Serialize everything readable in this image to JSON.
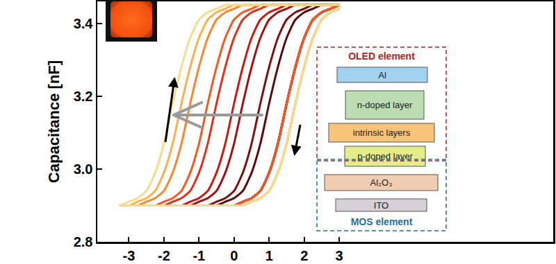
{
  "chart_data": {
    "type": "line",
    "ylabel": "Capacitance [nF]",
    "xlim": [
      -3.9,
      9.1
    ],
    "ylim": [
      2.8,
      3.46
    ],
    "xticks": [
      -3,
      -2,
      -1,
      0,
      1,
      2,
      3
    ],
    "yticks": [
      2.8,
      {
        "value": 3,
        "label": "3.0"
      },
      3.2,
      3.4
    ],
    "grid": false,
    "x": [
      -3.25,
      -3,
      -2.75,
      -2.5,
      -2.25,
      -2,
      -1.75,
      -1.5,
      -1.25,
      -1,
      -0.75,
      -0.5,
      -0.25,
      0,
      0.25,
      0.5,
      0.75,
      1,
      1.25,
      1.5,
      1.75,
      2,
      2.25,
      2.5,
      2.75,
      3,
      3,
      2.75,
      2.5,
      2.25,
      2,
      1.75,
      1.5,
      1.25,
      1,
      0.75,
      0.5,
      0.25,
      0,
      -0.25,
      -0.5,
      -0.75,
      -1,
      -1.25,
      -1.5,
      -1.75,
      -2,
      -2.25,
      -2.5,
      -2.75,
      -3,
      -3.25
    ],
    "series": [
      {
        "color": "#5a0a0a",
        "line_style": "solid",
        "values": [
          2.9,
          2.9,
          2.9,
          2.9,
          2.9,
          2.9,
          2.9,
          2.9,
          2.9,
          2.9,
          2.9,
          2.9,
          2.9,
          2.9,
          2.91,
          2.92,
          2.94,
          2.99,
          3.07,
          3.18,
          3.28,
          3.36,
          3.41,
          3.43,
          3.44,
          3.45,
          3.45,
          3.45,
          3.45,
          3.44,
          3.43,
          3.41,
          3.36,
          3.28,
          3.18,
          3.07,
          2.99,
          2.94,
          2.92,
          2.91,
          2.9,
          2.9,
          2.9,
          2.9,
          2.9,
          2.9,
          2.9,
          2.9,
          2.9,
          2.9,
          2.9,
          2.9
        ]
      },
      {
        "color": "#7d0f0f",
        "line_style": "solid",
        "values": [
          2.9,
          2.9,
          2.9,
          2.9,
          2.9,
          2.9,
          2.9,
          2.9,
          2.9,
          2.9,
          2.9,
          2.9,
          2.9,
          2.9,
          2.91,
          2.92,
          2.94,
          2.99,
          3.07,
          3.18,
          3.28,
          3.36,
          3.41,
          3.43,
          3.44,
          3.45,
          3.45,
          3.45,
          3.45,
          3.45,
          3.44,
          3.43,
          3.41,
          3.36,
          3.28,
          3.18,
          3.07,
          2.99,
          2.94,
          2.92,
          2.91,
          2.9,
          2.9,
          2.9,
          2.9,
          2.9,
          2.9,
          2.9,
          2.9,
          2.9,
          2.9,
          2.9
        ]
      },
      {
        "color": "#a01010",
        "line_style": "solid",
        "values": [
          2.9,
          2.9,
          2.9,
          2.9,
          2.9,
          2.9,
          2.9,
          2.9,
          2.9,
          2.9,
          2.9,
          2.9,
          2.9,
          2.9,
          2.91,
          2.92,
          2.94,
          2.99,
          3.07,
          3.18,
          3.28,
          3.36,
          3.41,
          3.43,
          3.44,
          3.45,
          3.45,
          3.45,
          3.45,
          3.45,
          3.45,
          3.45,
          3.44,
          3.43,
          3.41,
          3.36,
          3.28,
          3.18,
          3.07,
          2.99,
          2.94,
          2.92,
          2.91,
          2.9,
          2.9,
          2.9,
          2.9,
          2.9,
          2.9,
          2.9,
          2.9,
          2.9
        ]
      },
      {
        "color": "#c41a12",
        "line_style": "solid",
        "values": [
          2.9,
          2.9,
          2.9,
          2.9,
          2.9,
          2.9,
          2.9,
          2.9,
          2.9,
          2.9,
          2.9,
          2.9,
          2.9,
          2.9,
          2.91,
          2.92,
          2.94,
          2.99,
          3.07,
          3.18,
          3.28,
          3.36,
          3.41,
          3.43,
          3.44,
          3.45,
          3.45,
          3.45,
          3.45,
          3.45,
          3.45,
          3.45,
          3.45,
          3.44,
          3.43,
          3.41,
          3.36,
          3.28,
          3.18,
          3.07,
          2.99,
          2.94,
          2.92,
          2.91,
          2.9,
          2.9,
          2.9,
          2.9,
          2.9,
          2.9,
          2.9,
          2.9
        ]
      },
      {
        "color": "#e0301a",
        "line_style": "solid",
        "values": [
          2.9,
          2.9,
          2.9,
          2.9,
          2.9,
          2.9,
          2.9,
          2.9,
          2.9,
          2.9,
          2.9,
          2.9,
          2.9,
          2.9,
          2.91,
          2.92,
          2.94,
          2.99,
          3.07,
          3.18,
          3.28,
          3.36,
          3.41,
          3.43,
          3.44,
          3.45,
          3.45,
          3.45,
          3.45,
          3.45,
          3.45,
          3.45,
          3.45,
          3.45,
          3.45,
          3.44,
          3.43,
          3.41,
          3.36,
          3.28,
          3.18,
          3.07,
          2.99,
          2.94,
          2.92,
          2.91,
          2.9,
          2.9,
          2.9,
          2.9,
          2.9,
          2.9
        ]
      },
      {
        "color": "#f05a22",
        "line_style": "solid",
        "values": [
          2.9,
          2.9,
          2.9,
          2.9,
          2.9,
          2.9,
          2.9,
          2.9,
          2.9,
          2.9,
          2.9,
          2.9,
          2.9,
          2.9,
          2.91,
          2.92,
          2.94,
          2.99,
          3.07,
          3.18,
          3.28,
          3.36,
          3.41,
          3.43,
          3.44,
          3.45,
          3.45,
          3.45,
          3.45,
          3.45,
          3.45,
          3.45,
          3.45,
          3.45,
          3.45,
          3.45,
          3.44,
          3.43,
          3.41,
          3.36,
          3.28,
          3.18,
          3.07,
          2.99,
          2.94,
          2.92,
          2.91,
          2.9,
          2.9,
          2.9,
          2.9,
          2.9
        ]
      },
      {
        "color": "#f7862e",
        "line_style": "solid",
        "values": [
          2.9,
          2.9,
          2.9,
          2.9,
          2.9,
          2.9,
          2.9,
          2.9,
          2.9,
          2.9,
          2.9,
          2.9,
          2.9,
          2.9,
          2.9,
          2.91,
          2.92,
          2.94,
          2.99,
          3.07,
          3.18,
          3.28,
          3.36,
          3.41,
          3.43,
          3.44,
          3.45,
          3.45,
          3.45,
          3.45,
          3.45,
          3.45,
          3.45,
          3.45,
          3.45,
          3.45,
          3.45,
          3.45,
          3.44,
          3.43,
          3.41,
          3.36,
          3.28,
          3.18,
          3.07,
          2.99,
          2.94,
          2.92,
          2.91,
          2.9,
          2.9,
          2.9
        ]
      },
      {
        "color": "#fab050",
        "line_style": "solid",
        "values": [
          2.9,
          2.9,
          2.9,
          2.9,
          2.9,
          2.9,
          2.9,
          2.9,
          2.9,
          2.9,
          2.9,
          2.9,
          2.9,
          2.9,
          2.9,
          2.91,
          2.92,
          2.94,
          2.99,
          3.07,
          3.18,
          3.28,
          3.36,
          3.41,
          3.43,
          3.44,
          3.45,
          3.45,
          3.45,
          3.45,
          3.45,
          3.45,
          3.45,
          3.45,
          3.45,
          3.45,
          3.45,
          3.45,
          3.45,
          3.44,
          3.43,
          3.41,
          3.36,
          3.28,
          3.18,
          3.07,
          2.99,
          2.94,
          2.92,
          2.91,
          2.9,
          2.9
        ]
      },
      {
        "color": "#f3dc8c",
        "line_style": "solid",
        "values": [
          2.9,
          2.9,
          2.9,
          2.9,
          2.9,
          2.9,
          2.9,
          2.9,
          2.9,
          2.9,
          2.9,
          2.9,
          2.9,
          2.9,
          2.9,
          2.91,
          2.92,
          2.94,
          2.99,
          3.07,
          3.18,
          3.28,
          3.36,
          3.41,
          3.43,
          3.44,
          3.45,
          3.45,
          3.45,
          3.45,
          3.45,
          3.45,
          3.45,
          3.45,
          3.45,
          3.45,
          3.45,
          3.45,
          3.45,
          3.45,
          3.44,
          3.43,
          3.41,
          3.36,
          3.28,
          3.18,
          3.07,
          2.99,
          2.94,
          2.92,
          2.91,
          2.9
        ]
      }
    ]
  },
  "diagram": {
    "groups": [
      {
        "label": "OLED element",
        "layers": [
          "Al",
          "n-doped layer",
          "intrinsic layers",
          "p-doped layer"
        ]
      },
      {
        "label": "MOS element",
        "layers": [
          "Al₂O₃",
          "ITO"
        ]
      }
    ]
  }
}
